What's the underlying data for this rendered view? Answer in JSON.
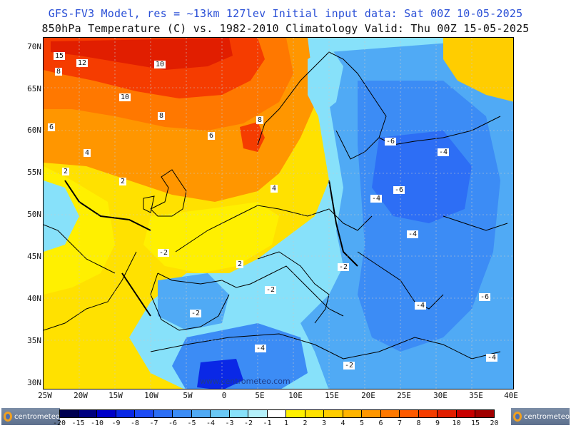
{
  "title": {
    "line1": "GFS-FV3 Model, res = ~13km 127lev   Initial input data: Sat 00Z 10-05-2025",
    "line2": "850hPa Temperature (C) vs. 1982-2010 Climatology  Valid: Thu 00Z 15-05-2025"
  },
  "axes": {
    "lat_labels": [
      "70N",
      "65N",
      "60N",
      "55N",
      "50N",
      "45N",
      "40N",
      "35N",
      "30N"
    ],
    "lon_labels": [
      "25W",
      "20W",
      "15W",
      "10W",
      "5W",
      "0",
      "5E",
      "10E",
      "15E",
      "20E",
      "25E",
      "30E",
      "35E",
      "40E"
    ]
  },
  "watermark": "www.centrometeo.com",
  "legend": {
    "labels": [
      "-20",
      "-15",
      "-10",
      "-9",
      "-8",
      "-7",
      "-6",
      "-5",
      "-4",
      "-3",
      "-2",
      "-1",
      "1",
      "2",
      "3",
      "4",
      "5",
      "6",
      "7",
      "8",
      "9",
      "10",
      "15",
      "20"
    ],
    "colors": [
      "#000050",
      "#00007f",
      "#0000c8",
      "#0a28e6",
      "#1e4bf5",
      "#2d6ef5",
      "#3c8cf5",
      "#50aaf5",
      "#69c8f5",
      "#87e1fa",
      "#b4f0fa",
      "#ffffff",
      "#fff000",
      "#ffe100",
      "#ffcd00",
      "#ffb400",
      "#ff9600",
      "#ff7800",
      "#ff5a00",
      "#f53c00",
      "#e11e00",
      "#c80000",
      "#a00000"
    ],
    "logo_text": "centrometeo"
  },
  "map_labels": [
    {
      "text": "15"
    },
    {
      "text": "12"
    },
    {
      "text": "8"
    },
    {
      "text": "10"
    },
    {
      "text": "10"
    },
    {
      "text": "8"
    },
    {
      "text": "6"
    },
    {
      "text": "6"
    },
    {
      "text": "4"
    },
    {
      "text": "2"
    },
    {
      "text": "2"
    },
    {
      "text": "-2"
    },
    {
      "text": "2"
    },
    {
      "text": "-2"
    },
    {
      "text": "-2"
    },
    {
      "text": "-4"
    },
    {
      "text": "-2"
    },
    {
      "text": "-6"
    },
    {
      "text": "-4"
    },
    {
      "text": "-4"
    },
    {
      "text": "-6"
    },
    {
      "text": "-4"
    },
    {
      "text": "-2"
    },
    {
      "text": "-4"
    },
    {
      "text": "-6"
    },
    {
      "text": "-4"
    },
    {
      "text": "4"
    },
    {
      "text": "8"
    }
  ]
}
